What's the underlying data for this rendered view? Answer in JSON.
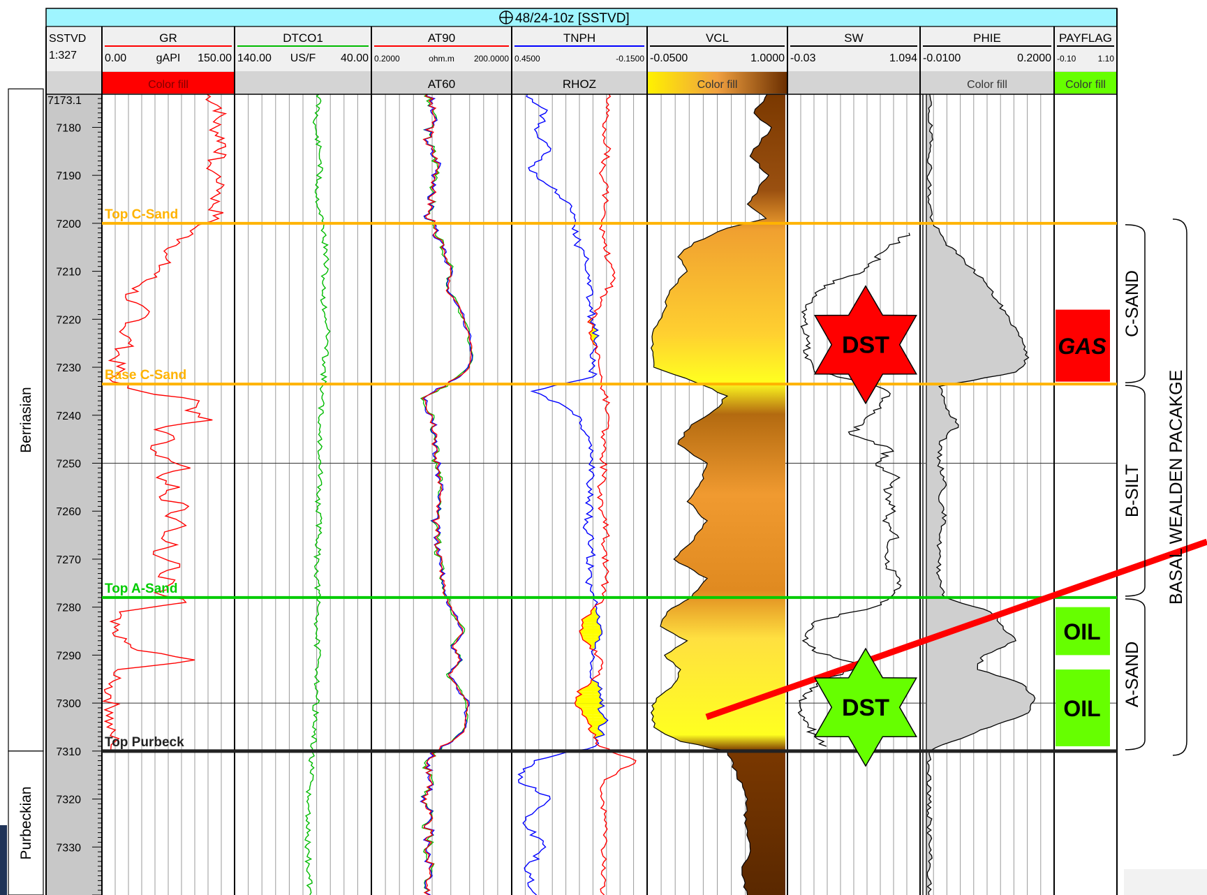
{
  "chart_data": {
    "type": "line",
    "title": "48/24-10z [SSTVD]",
    "title_icon": "crosshair-circle-icon",
    "depth_track": {
      "name": "SSTVD",
      "scale": "1:327",
      "top_label": "7173.1",
      "range": [
        7173.1,
        7340
      ],
      "ticks": [
        "7180",
        "7190",
        "7200",
        "7210",
        "7220",
        "7230",
        "7240",
        "7250",
        "7260",
        "7270",
        "7280",
        "7290",
        "7300",
        "7310",
        "7320",
        "7330"
      ]
    },
    "tracks": [
      {
        "id": "gr",
        "header": "GR",
        "min_label": "0.00",
        "unit": "gAPI",
        "max_label": "150.00",
        "fill_label": "Color fill",
        "fill_color": "#ff0000",
        "color": "#ff0000",
        "range": [
          0,
          150
        ],
        "depths": [
          7173,
          7176,
          7180,
          7184,
          7188,
          7192,
          7196,
          7199,
          7201,
          7204,
          7207,
          7210,
          7213,
          7216,
          7219,
          7222,
          7225,
          7228,
          7231,
          7233,
          7235,
          7237,
          7239,
          7241,
          7243,
          7245,
          7247,
          7249,
          7251,
          7253,
          7255,
          7257,
          7259,
          7261,
          7263,
          7265,
          7267,
          7269,
          7271,
          7273,
          7275,
          7277,
          7279,
          7281,
          7283,
          7286,
          7289,
          7291,
          7293,
          7296,
          7299,
          7302,
          7305,
          7308,
          7310
        ],
        "values": [
          118,
          135,
          128,
          140,
          122,
          138,
          126,
          132,
          105,
          88,
          72,
          65,
          42,
          28,
          52,
          24,
          30,
          15,
          20,
          12,
          44,
          110,
          95,
          125,
          60,
          82,
          55,
          75,
          100,
          62,
          88,
          65,
          98,
          72,
          95,
          70,
          85,
          58,
          88,
          66,
          80,
          60,
          95,
          20,
          10,
          14,
          40,
          105,
          18,
          8,
          10,
          12,
          6,
          15,
          10
        ]
      },
      {
        "id": "dtco",
        "header": "DTCO1",
        "min_label": "140.00",
        "unit": "US/F",
        "max_label": "40.00",
        "fill_label": "",
        "color": "#00bb00",
        "range": [
          140,
          40
        ],
        "depths": [
          7173,
          7180,
          7187,
          7194,
          7201,
          7208,
          7215,
          7222,
          7229,
          7236,
          7243,
          7250,
          7257,
          7264,
          7271,
          7278,
          7285,
          7292,
          7299,
          7306,
          7313,
          7320,
          7327,
          7334,
          7340
        ],
        "values": [
          78,
          81,
          77,
          80,
          75,
          73,
          76,
          72,
          74,
          76,
          78,
          77,
          79,
          78,
          80,
          79,
          80,
          79,
          80,
          82,
          84,
          86,
          87,
          86,
          85
        ]
      },
      {
        "id": "at90",
        "header": "AT90",
        "sub_header": "AT60",
        "min_label": "0.2000",
        "unit": "ohm.m",
        "max_label": "200.0000",
        "fill_label": "",
        "color": "#ff0000",
        "color2": "#0000ff",
        "color3": "#00bb00",
        "range_log": [
          0.2,
          200
        ],
        "depths": [
          7173,
          7178,
          7183,
          7188,
          7193,
          7198,
          7202,
          7206,
          7210,
          7214,
          7218,
          7222,
          7226,
          7230,
          7233,
          7236,
          7240,
          7244,
          7248,
          7252,
          7256,
          7260,
          7264,
          7268,
          7272,
          7276,
          7279,
          7282,
          7285,
          7288,
          7291,
          7294,
          7297,
          7300,
          7303,
          7306,
          7309,
          7312,
          7316,
          7320,
          7325,
          7330,
          7335,
          7340
        ],
        "values": [
          3.2,
          4.5,
          3.0,
          5.5,
          4.2,
          3.5,
          4.5,
          7.5,
          10,
          8,
          16,
          22,
          28,
          25,
          9,
          3.0,
          4.0,
          5.0,
          4.5,
          5.8,
          6.0,
          5.0,
          4.8,
          5.5,
          6.5,
          7.0,
          8.5,
          13,
          18,
          11,
          16,
          9,
          14,
          23,
          21,
          19,
          6,
          3.2,
          3.6,
          3.0,
          3.4,
          3.2,
          3.6,
          3.4
        ]
      },
      {
        "id": "tnph",
        "header": "TNPH",
        "sub_header": "RHOZ",
        "min_label": "0.4500",
        "max_label": "-0.1500",
        "fill_label": "",
        "color": "#0000ff",
        "color2": "#ff0000",
        "range": [
          0.45,
          -0.15
        ],
        "depths": [
          7173,
          7177,
          7181,
          7185,
          7189,
          7193,
          7197,
          7200,
          7204,
          7208,
          7212,
          7216,
          7220,
          7224,
          7228,
          7232,
          7235,
          7238,
          7241,
          7244,
          7248,
          7252,
          7256,
          7260,
          7264,
          7268,
          7272,
          7276,
          7279,
          7282,
          7285,
          7288,
          7291,
          7294,
          7297,
          7300,
          7303,
          7306,
          7309,
          7312,
          7316,
          7320,
          7325,
          7330,
          7335,
          7340
        ],
        "values": [
          0.38,
          0.3,
          0.34,
          0.28,
          0.37,
          0.25,
          0.19,
          0.17,
          0.16,
          0.12,
          0.1,
          0.11,
          0.09,
          0.08,
          0.1,
          0.09,
          0.36,
          0.22,
          0.14,
          0.12,
          0.1,
          0.09,
          0.11,
          0.1,
          0.12,
          0.09,
          0.11,
          0.1,
          0.07,
          0.06,
          0.05,
          0.08,
          0.09,
          0.1,
          0.05,
          0.06,
          0.04,
          0.05,
          0.08,
          0.35,
          0.42,
          0.28,
          0.4,
          0.3,
          0.39,
          0.34
        ],
        "rhoz": [
          0.02,
          0.03,
          0.04,
          0.02,
          0.05,
          0.03,
          0.04,
          0.05,
          0.04,
          0.02,
          0.0,
          0.05,
          0.1,
          0.1,
          0.06,
          0.05,
          0.04,
          0.03,
          0.02,
          0.04,
          0.05,
          0.04,
          0.06,
          0.05,
          0.03,
          0.04,
          0.03,
          0.04,
          0.05,
          0.12,
          0.15,
          0.1,
          0.05,
          0.06,
          0.14,
          0.17,
          0.12,
          0.1,
          0.06,
          -0.1,
          0.04,
          0.05,
          0.03,
          0.04,
          0.05,
          0.04
        ]
      },
      {
        "id": "vcl",
        "header": "VCL",
        "min_label": "-0.0500",
        "max_label": "1.0000",
        "fill_label": "Color fill",
        "color": "#000000",
        "range": [
          -0.05,
          1.0
        ],
        "depths": [
          7173,
          7177,
          7180,
          7183,
          7186,
          7190,
          7193,
          7196,
          7199,
          7201,
          7204,
          7207,
          7210,
          7214,
          7218,
          7222,
          7226,
          7230,
          7233,
          7236,
          7239,
          7242,
          7246,
          7250,
          7254,
          7258,
          7262,
          7266,
          7270,
          7274,
          7278,
          7281,
          7284,
          7287,
          7290,
          7293,
          7296,
          7299,
          7302,
          7305,
          7308,
          7310,
          7315,
          7320,
          7325,
          7330,
          7335,
          7340
        ],
        "values": [
          0.85,
          0.75,
          0.88,
          0.8,
          0.72,
          0.86,
          0.78,
          0.7,
          0.84,
          0.55,
          0.3,
          0.18,
          0.25,
          0.12,
          0.08,
          0.0,
          -0.02,
          0.0,
          0.3,
          0.55,
          0.45,
          0.28,
          0.18,
          0.4,
          0.35,
          0.25,
          0.4,
          0.3,
          0.15,
          0.4,
          0.28,
          0.1,
          0.05,
          0.25,
          0.08,
          0.2,
          0.15,
          0.02,
          -0.02,
          0.0,
          0.2,
          0.55,
          0.62,
          0.7,
          0.68,
          0.72,
          0.66,
          0.7
        ]
      },
      {
        "id": "sw",
        "header": "SW",
        "min_label": "-0.03",
        "max_label": "1.094",
        "fill_label": "",
        "color": "#000000",
        "range": [
          -0.03,
          1.094
        ],
        "depths": [
          7202,
          7206,
          7210,
          7213,
          7216,
          7219,
          7222,
          7225,
          7228,
          7231,
          7233,
          7235,
          7238,
          7241,
          7244,
          7247,
          7250,
          7253,
          7256,
          7259,
          7262,
          7265,
          7268,
          7271,
          7274,
          7277,
          7280,
          7283,
          7286,
          7289,
          7292,
          7295,
          7298,
          7301,
          7304,
          7307,
          7309
        ],
        "values": [
          1.0,
          0.78,
          0.62,
          0.28,
          0.18,
          0.12,
          0.1,
          0.16,
          0.12,
          0.2,
          0.62,
          0.82,
          0.75,
          0.62,
          0.5,
          0.85,
          0.72,
          0.92,
          0.8,
          0.88,
          0.78,
          0.9,
          0.82,
          0.8,
          0.92,
          0.88,
          0.7,
          0.2,
          0.12,
          0.18,
          0.6,
          0.3,
          0.12,
          0.08,
          0.14,
          0.2,
          0.3
        ]
      },
      {
        "id": "phie",
        "header": "PHIE",
        "min_label": "-0.0100",
        "max_label": "0.2000",
        "fill_label": "Color fill",
        "color": "#000000",
        "fill_color": "#cfcfcf",
        "range": [
          -0.01,
          0.2
        ],
        "depths": [
          7173,
          7185,
          7195,
          7200,
          7204,
          7208,
          7212,
          7216,
          7220,
          7224,
          7228,
          7231,
          7234,
          7238,
          7242,
          7246,
          7250,
          7254,
          7258,
          7262,
          7266,
          7270,
          7274,
          7278,
          7281,
          7284,
          7287,
          7290,
          7293,
          7296,
          7299,
          7302,
          7305,
          7308,
          7310,
          7320,
          7330,
          7340
        ],
        "values": [
          0.005,
          0.006,
          0.004,
          0.01,
          0.03,
          0.06,
          0.09,
          0.11,
          0.13,
          0.15,
          0.16,
          0.14,
          0.02,
          0.03,
          0.05,
          0.02,
          0.02,
          0.03,
          0.02,
          0.03,
          0.02,
          0.02,
          0.02,
          0.03,
          0.1,
          0.12,
          0.14,
          0.09,
          0.08,
          0.15,
          0.17,
          0.16,
          0.1,
          0.04,
          0.005,
          0.004,
          0.005,
          0.004
        ]
      },
      {
        "id": "payflag",
        "header": "PAYFLAG",
        "min_label": "-0.10",
        "max_label": "1.10",
        "fill_label": "Color fill",
        "fill_color": "#66ff00"
      }
    ],
    "tops": [
      {
        "label": "Top C-Sand",
        "depth": 7200,
        "color": "#ffb300"
      },
      {
        "label": "Base C-Sand",
        "depth": 7233.5,
        "color": "#ffb300"
      },
      {
        "label": "Top A-Sand",
        "depth": 7278,
        "color": "#00cc00"
      },
      {
        "label": "Top Purbeck",
        "depth": 7310,
        "color": "#222222"
      }
    ],
    "pay_intervals": [
      {
        "label": "GAS",
        "top": 7218,
        "base": 7233,
        "color": "#ff0000"
      },
      {
        "label": "OIL",
        "top": 7280,
        "base": 7290,
        "color": "#66ff00"
      },
      {
        "label": "OIL",
        "top": 7293,
        "base": 7309,
        "color": "#66ff00"
      }
    ],
    "dst": [
      {
        "label": "DST",
        "depth": 7225,
        "color": "#ff0000"
      },
      {
        "label": "DST",
        "depth": 7300,
        "color": "#66ff00"
      }
    ],
    "stages": [
      {
        "label": "Berriasian",
        "top": 7173,
        "base": 7310
      },
      {
        "label": "Purbeckian",
        "top": 7310,
        "base": 7340
      }
    ],
    "zones": [
      {
        "label": "C-SAND",
        "top": 7200,
        "base": 7233.5
      },
      {
        "label": "B-SILT",
        "top": 7233.5,
        "base": 7278
      },
      {
        "label": "A-SAND",
        "top": 7278,
        "base": 7310
      }
    ],
    "package_label": "BASAL WEALDEN PACAKGE",
    "grid": true
  }
}
